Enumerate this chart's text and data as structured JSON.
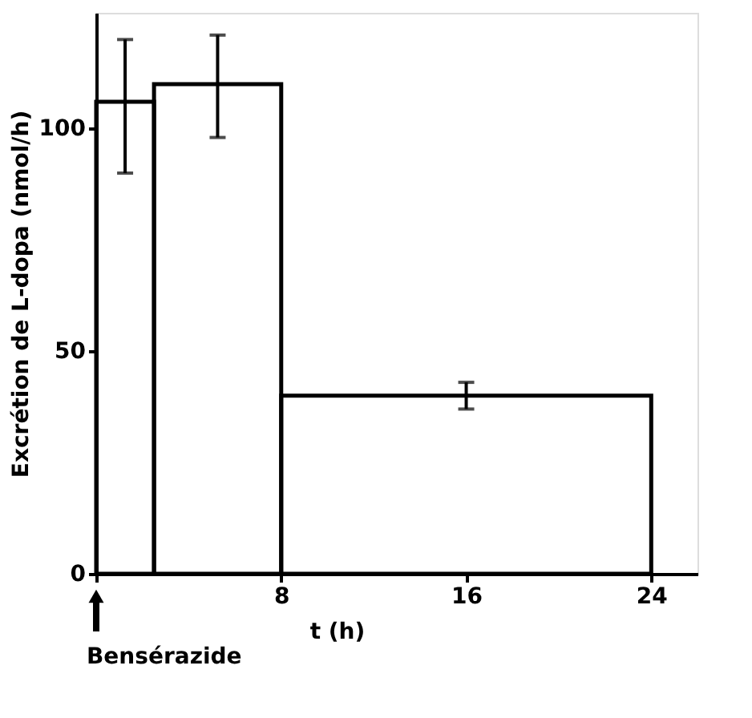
{
  "chart_data": {
    "type": "histogram",
    "bins": [
      0,
      2.5,
      8,
      24
    ],
    "values": [
      106,
      110,
      40
    ],
    "errors": [
      [
        90,
        120
      ],
      [
        98,
        121
      ],
      [
        37,
        43
      ]
    ],
    "color": "#000000",
    "xlabel": "t (h)",
    "ylabel": "Excrétion de L-dopa (nmol/h)",
    "xlim": [
      0,
      26
    ],
    "xticks": [
      {
        "value": 0,
        "label": null
      },
      8,
      16,
      24
    ],
    "ylim": [
      0,
      126
    ],
    "yticks": [
      0,
      50,
      100
    ],
    "annotations": [
      "Bensérazide"
    ],
    "grid": false
  }
}
